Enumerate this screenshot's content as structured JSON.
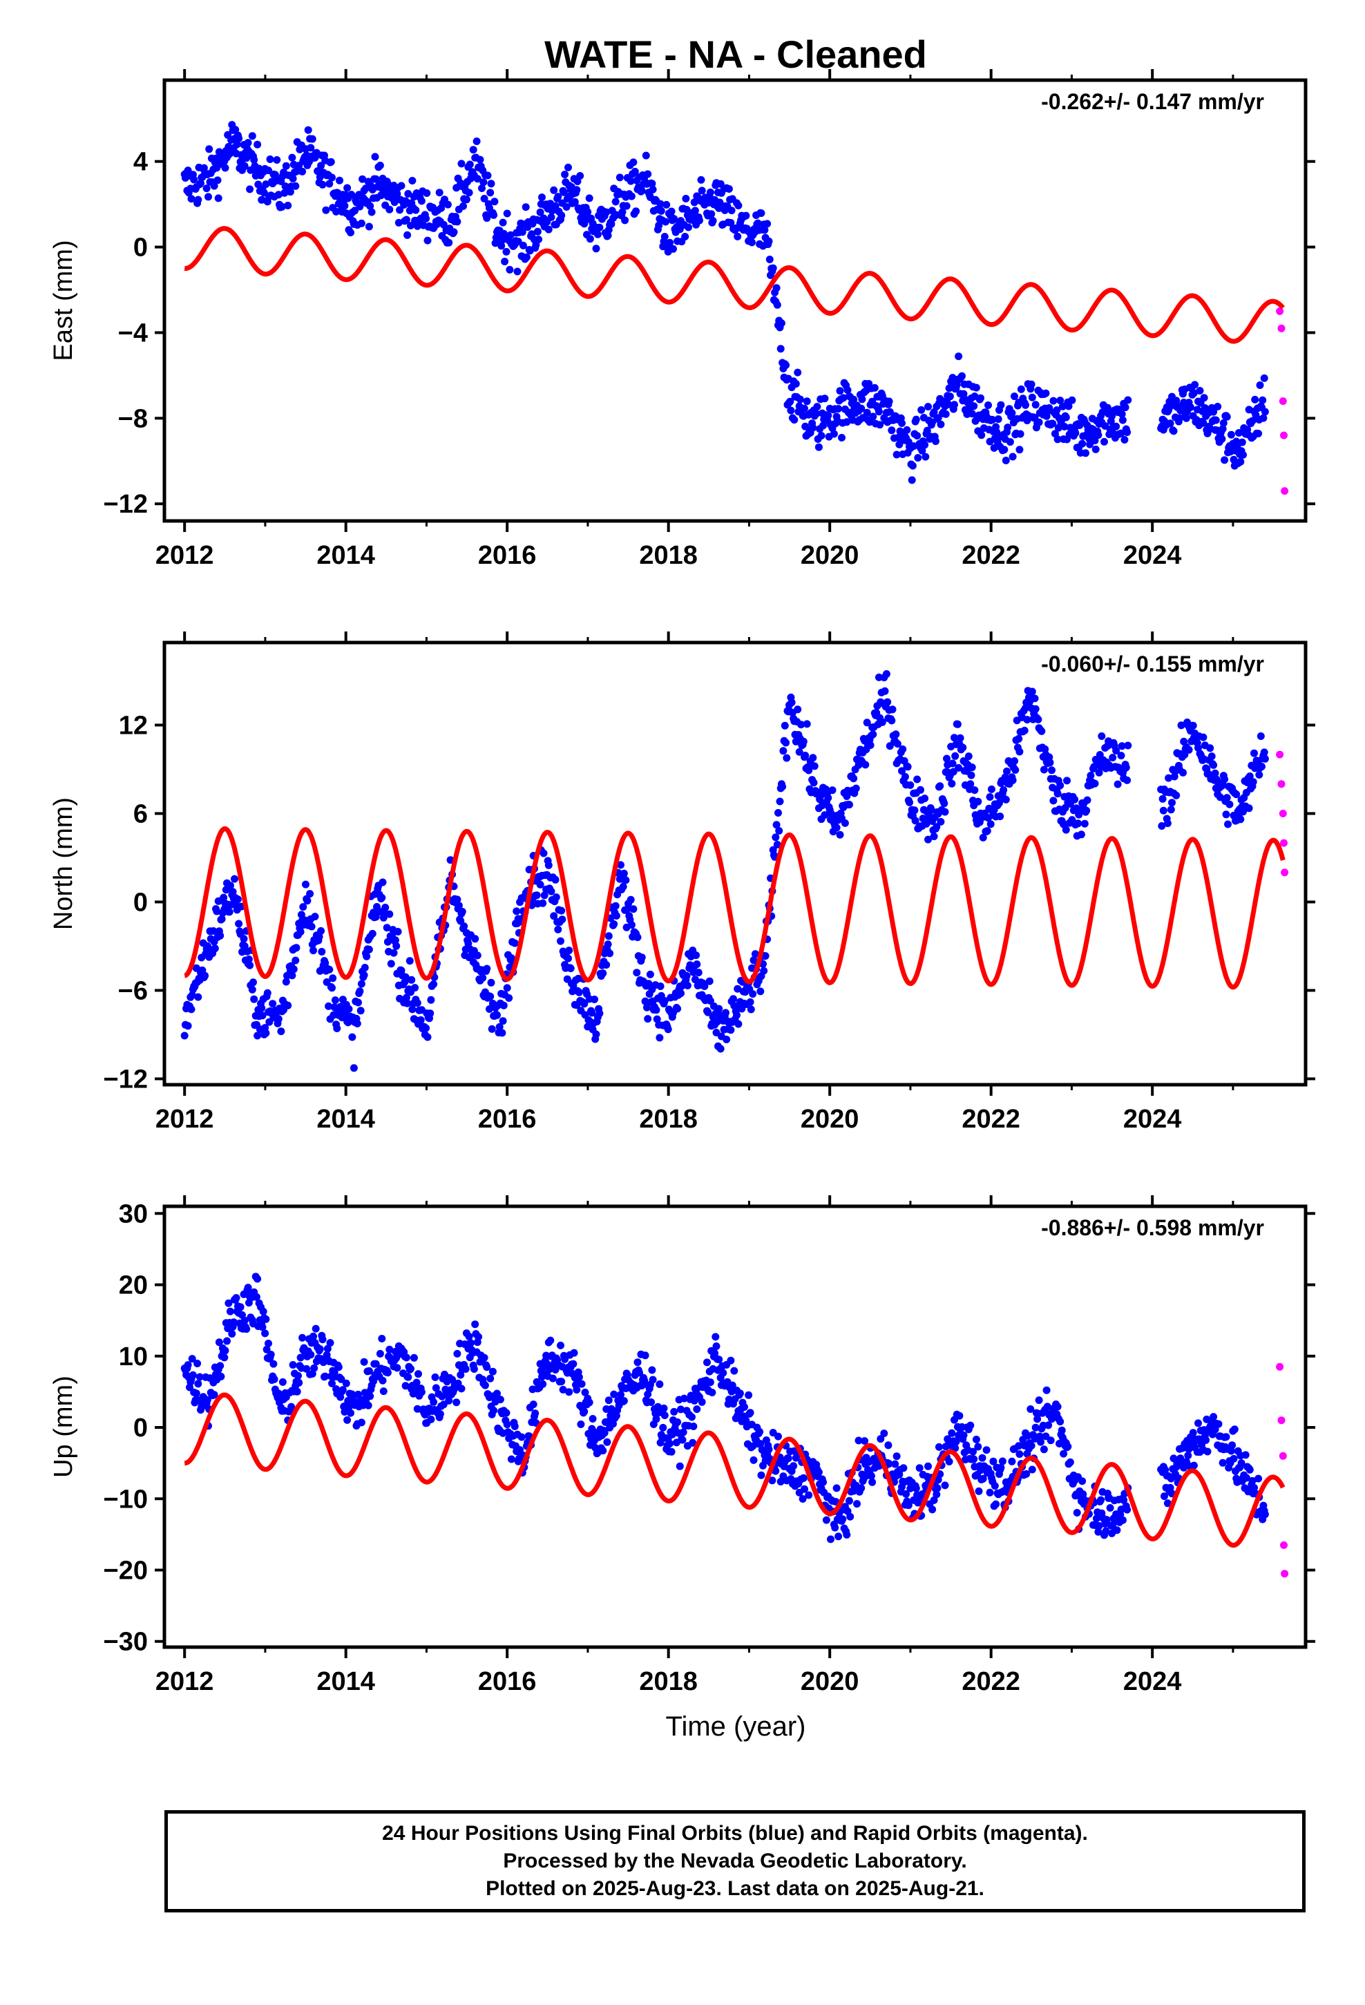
{
  "chart_data": {
    "title": "WATE  - NA - Cleaned",
    "xlabel": "Time (year)",
    "xlim": [
      2011.75,
      2025.9
    ],
    "xticks": [
      "2012",
      "2014",
      "2016",
      "2018",
      "2020",
      "2022",
      "2024"
    ],
    "xtick_values": [
      2012,
      2014,
      2016,
      2018,
      2020,
      2022,
      2024
    ],
    "colors": {
      "final": "#0000ff",
      "rapid": "#ff00ff",
      "model": "#ff0000"
    },
    "panels": [
      {
        "type": "scatter",
        "ylabel": "East (mm)",
        "ylim": [
          -12.8,
          7.8
        ],
        "yticks": [
          "4",
          "0",
          "−4",
          "−8",
          "−12"
        ],
        "ytick_values": [
          4,
          0,
          -4,
          -8,
          -12
        ],
        "rate": "-0.262+/- 0.147 mm/yr",
        "series": [
          {
            "name": "Final Orbits",
            "color": "#0000ff",
            "x": [
              2012.0,
              2012.3,
              2012.6,
              2012.9,
              2013.2,
              2013.5,
              2013.8,
              2014.1,
              2014.4,
              2014.7,
              2015.0,
              2015.3,
              2015.6,
              2015.9,
              2016.2,
              2016.5,
              2016.8,
              2017.1,
              2017.4,
              2017.7,
              2018.0,
              2018.3,
              2018.6,
              2018.9,
              2019.2,
              2019.5,
              2019.8,
              2020.1,
              2020.4,
              2020.7,
              2021.0,
              2021.3,
              2021.6,
              2021.9,
              2022.2,
              2022.5,
              2022.8,
              2023.1,
              2023.4,
              2024.2,
              2024.5,
              2024.8,
              2025.1,
              2025.4
            ],
            "y": [
              2.8,
              3.2,
              4.8,
              3.6,
              2.6,
              4.4,
              3.0,
              1.8,
              2.9,
              2.0,
              1.6,
              1.2,
              4.0,
              0.6,
              0.2,
              1.6,
              2.6,
              0.8,
              2.1,
              3.2,
              0.5,
              1.4,
              2.2,
              0.9,
              0.6,
              -6.8,
              -8.4,
              -7.6,
              -7.2,
              -7.6,
              -9.6,
              -8.2,
              -6.4,
              -7.9,
              -8.6,
              -7.4,
              -7.8,
              -8.8,
              -8.0,
              -8.0,
              -7.2,
              -8.4,
              -9.6,
              -7.0
            ]
          },
          {
            "name": "Rapid Orbits",
            "color": "#ff00ff",
            "x": [
              2025.58,
              2025.6,
              2025.62,
              2025.63,
              2025.64
            ],
            "y": [
              -3.0,
              -3.8,
              -7.2,
              -8.8,
              -11.4
            ]
          }
        ],
        "model": {
          "color": "#ff0000",
          "offset": 0.0,
          "trend": -0.262,
          "annual": 1.0,
          "semiannual": 0.0,
          "step_time": 2019.45,
          "step": 0.0
        }
      },
      {
        "type": "scatter",
        "ylabel": "North (mm)",
        "ylim": [
          -12.4,
          17.6
        ],
        "yticks": [
          "12",
          "6",
          "0",
          "−6",
          "−12"
        ],
        "ytick_values": [
          12,
          6,
          0,
          -6,
          -12
        ],
        "rate": "-0.060+/- 0.155 mm/yr",
        "series": [
          {
            "name": "Final Orbits",
            "color": "#0000ff",
            "x": [
              2012.0,
              2012.3,
              2012.6,
              2012.9,
              2013.2,
              2013.5,
              2013.8,
              2014.1,
              2014.4,
              2014.7,
              2015.0,
              2015.3,
              2015.6,
              2015.9,
              2016.2,
              2016.5,
              2016.8,
              2017.1,
              2017.4,
              2017.7,
              2018.0,
              2018.3,
              2018.6,
              2018.9,
              2019.2,
              2019.5,
              2019.8,
              2020.1,
              2020.4,
              2020.7,
              2021.0,
              2021.3,
              2021.6,
              2021.9,
              2022.2,
              2022.5,
              2022.8,
              2023.1,
              2023.4,
              2024.2,
              2024.5,
              2024.8,
              2025.1,
              2025.4
            ],
            "y": [
              -8.0,
              -3.0,
              1.0,
              -7.5,
              -7.8,
              0.5,
              -6.0,
              -9.0,
              0.8,
              -5.0,
              -8.5,
              1.5,
              -4.0,
              -8.5,
              1.0,
              2.0,
              -5.0,
              -8.0,
              2.0,
              -5.5,
              -8.0,
              -4.0,
              -9.0,
              -7.0,
              -4.0,
              14.0,
              8.0,
              5.0,
              10.0,
              14.0,
              7.0,
              5.5,
              11.0,
              5.0,
              8.0,
              14.0,
              7.0,
              6.0,
              10.0,
              7.0,
              12.0,
              8.0,
              6.0,
              11.0
            ]
          },
          {
            "name": "Rapid Orbits",
            "color": "#ff00ff",
            "x": [
              2025.58,
              2025.6,
              2025.62,
              2025.63,
              2025.64
            ],
            "y": [
              10.0,
              8.0,
              6.0,
              4.0,
              2.0
            ]
          }
        ],
        "model": {
          "color": "#ff0000",
          "offset": 0.0,
          "trend": -0.06,
          "annual": 5.0,
          "semiannual": 0.0,
          "step_time": 2019.45,
          "step": 0.0
        }
      },
      {
        "type": "scatter",
        "ylabel": "Up (mm)",
        "ylim": [
          -30.8,
          31.0
        ],
        "yticks": [
          "30",
          "20",
          "10",
          "0",
          "−10",
          "−20",
          "−30"
        ],
        "ytick_values": [
          30,
          20,
          10,
          0,
          -10,
          -20,
          -30
        ],
        "rate": "-0.886+/- 0.598 mm/yr",
        "series": [
          {
            "name": "Final Orbits",
            "color": "#0000ff",
            "x": [
              2012.0,
              2012.3,
              2012.6,
              2012.9,
              2013.2,
              2013.5,
              2013.8,
              2014.1,
              2014.4,
              2014.7,
              2015.0,
              2015.3,
              2015.6,
              2015.9,
              2016.2,
              2016.5,
              2016.8,
              2017.1,
              2017.4,
              2017.7,
              2018.0,
              2018.3,
              2018.6,
              2018.9,
              2019.2,
              2019.5,
              2019.8,
              2020.1,
              2020.4,
              2020.7,
              2021.0,
              2021.3,
              2021.6,
              2021.9,
              2022.2,
              2022.5,
              2022.8,
              2023.1,
              2023.4,
              2024.2,
              2024.5,
              2024.8,
              2025.1,
              2025.4
            ],
            "y": [
              8.0,
              4.0,
              16.0,
              18.0,
              2.0,
              10.0,
              10.0,
              2.0,
              8.0,
              10.0,
              2.0,
              6.0,
              12.0,
              2.0,
              -4.0,
              10.0,
              8.0,
              -2.0,
              4.0,
              8.0,
              -2.0,
              2.0,
              10.0,
              2.0,
              -4.0,
              -6.0,
              -6.0,
              -14.0,
              -6.0,
              -4.0,
              -10.0,
              -8.0,
              0.0,
              -6.0,
              -8.0,
              -2.0,
              2.0,
              -10.0,
              -12.0,
              -8.0,
              -2.0,
              0.0,
              -6.0,
              -12.0
            ]
          },
          {
            "name": "Rapid Orbits",
            "color": "#ff00ff",
            "x": [
              2025.58,
              2025.6,
              2025.62,
              2025.63,
              2025.64
            ],
            "y": [
              8.5,
              1.0,
              -4.0,
              -16.5,
              -20.5
            ]
          }
        ],
        "model": {
          "color": "#ff0000",
          "offset": 0.0,
          "trend": -0.886,
          "annual": 5.0,
          "semiannual": 0.0,
          "step_time": 2019.45,
          "step": 0.0
        }
      }
    ]
  },
  "footer": {
    "line1": "24 Hour Positions Using Final Orbits (blue) and Rapid Orbits (magenta).",
    "line2": "Processed by the Nevada Geodetic Laboratory.",
    "line3": "Plotted on 2025-Aug-23. Last data on 2025-Aug-21."
  }
}
